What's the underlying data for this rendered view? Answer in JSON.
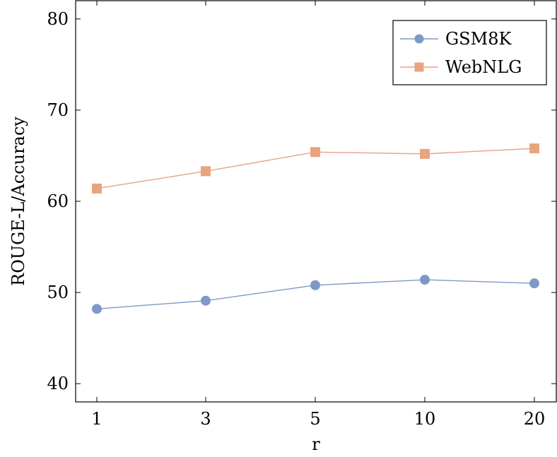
{
  "chart_data": {
    "type": "line",
    "title": "",
    "xlabel": "r",
    "ylabel": "ROUGE-L/Accuracy",
    "categories": [
      "1",
      "3",
      "5",
      "10",
      "20"
    ],
    "ylim": [
      38,
      82
    ],
    "yticks": [
      40,
      50,
      60,
      70,
      80
    ],
    "grid": false,
    "legend_position": "top-right",
    "series": [
      {
        "name": "GSM8K",
        "marker": "circle",
        "color": "#7f98c6",
        "values": [
          48.2,
          49.1,
          50.8,
          51.4,
          51.0
        ]
      },
      {
        "name": "WebNLG",
        "marker": "square",
        "color": "#e8a47f",
        "values": [
          61.4,
          63.3,
          65.4,
          65.2,
          65.8
        ]
      }
    ]
  }
}
